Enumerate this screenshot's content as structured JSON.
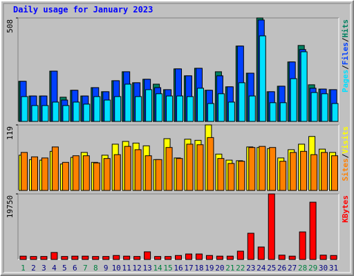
{
  "chart_data": [
    {
      "type": "bar",
      "title": "Daily usage for January 2023",
      "categories": [
        "1",
        "2",
        "3",
        "4",
        "5",
        "6",
        "7",
        "8",
        "9",
        "10",
        "11",
        "12",
        "13",
        "14",
        "15",
        "16",
        "17",
        "18",
        "19",
        "20",
        "21",
        "22",
        "23",
        "24",
        "25",
        "26",
        "27",
        "28",
        "29",
        "30",
        "31"
      ],
      "label_colors": [
        "#008040",
        "#000080",
        "#000080",
        "#000080",
        "#000080",
        "#000080",
        "#008040",
        "#008040",
        "#000080",
        "#000080",
        "#000080",
        "#000080",
        "#000080",
        "#008040",
        "#008040",
        "#000080",
        "#000080",
        "#000080",
        "#000080",
        "#000080",
        "#008040",
        "#008040",
        "#000080",
        "#000080",
        "#000080",
        "#000080",
        "#000080",
        "#008040",
        "#008040",
        "#000080",
        "#000080"
      ],
      "legend_separator": "/",
      "series": [
        {
          "name": "Hits",
          "color": "#008060",
          "values": [
            197,
            125,
            125,
            247,
            119,
            153,
            125,
            166,
            146,
            200,
            244,
            190,
            207,
            183,
            156,
            258,
            224,
            261,
            153,
            244,
            170,
            370,
            237,
            508,
            146,
            173,
            292,
            373,
            180,
            159,
            156
          ]
        },
        {
          "name": "Files",
          "color": "#0040ff",
          "values": [
            197,
            125,
            125,
            247,
            105,
            153,
            125,
            166,
            146,
            200,
            244,
            190,
            207,
            166,
            156,
            258,
            224,
            261,
            153,
            224,
            170,
            370,
            237,
            498,
            146,
            173,
            292,
            353,
            163,
            159,
            156
          ]
        },
        {
          "name": "Pages",
          "color": "#00e0ff",
          "values": [
            122,
            78,
            78,
            95,
            78,
            95,
            85,
            122,
            105,
            122,
            183,
            122,
            156,
            136,
            125,
            125,
            122,
            163,
            88,
            136,
            95,
            190,
            125,
            420,
            92,
            92,
            210,
            342,
            142,
            136,
            88
          ]
        }
      ],
      "ylim": [
        0,
        508
      ],
      "yticks": [
        508
      ]
    },
    {
      "type": "bar",
      "series": [
        {
          "name": "Visits",
          "color": "#ffff00",
          "values": [
            64,
            56,
            55,
            71,
            48,
            60,
            69,
            51,
            64,
            84,
            89,
            86,
            81,
            56,
            94,
            59,
            93,
            91,
            119,
            66,
            55,
            54,
            79,
            78,
            76,
            59,
            74,
            84,
            98,
            75,
            69
          ]
        },
        {
          "name": "Sites",
          "color": "#ff8000",
          "values": [
            69,
            61,
            59,
            79,
            51,
            63,
            63,
            50,
            58,
            65,
            80,
            74,
            63,
            56,
            78,
            58,
            84,
            83,
            96,
            58,
            49,
            53,
            78,
            80,
            78,
            53,
            69,
            71,
            65,
            69,
            63
          ]
        }
      ],
      "ylim": [
        0,
        119
      ],
      "yticks": [
        119
      ]
    },
    {
      "type": "bar",
      "series": [
        {
          "name": "KBytes",
          "color": "#ff0000",
          "values": [
            1000,
            900,
            900,
            2100,
            900,
            1000,
            1000,
            900,
            900,
            1200,
            1000,
            900,
            2300,
            900,
            900,
            1200,
            1650,
            1650,
            1200,
            1000,
            1000,
            2500,
            7900,
            3750,
            19750,
            1300,
            1000,
            8300,
            17250,
            1300,
            1200
          ]
        }
      ],
      "ylim": [
        0,
        19750
      ],
      "yticks": [
        19750
      ]
    }
  ]
}
